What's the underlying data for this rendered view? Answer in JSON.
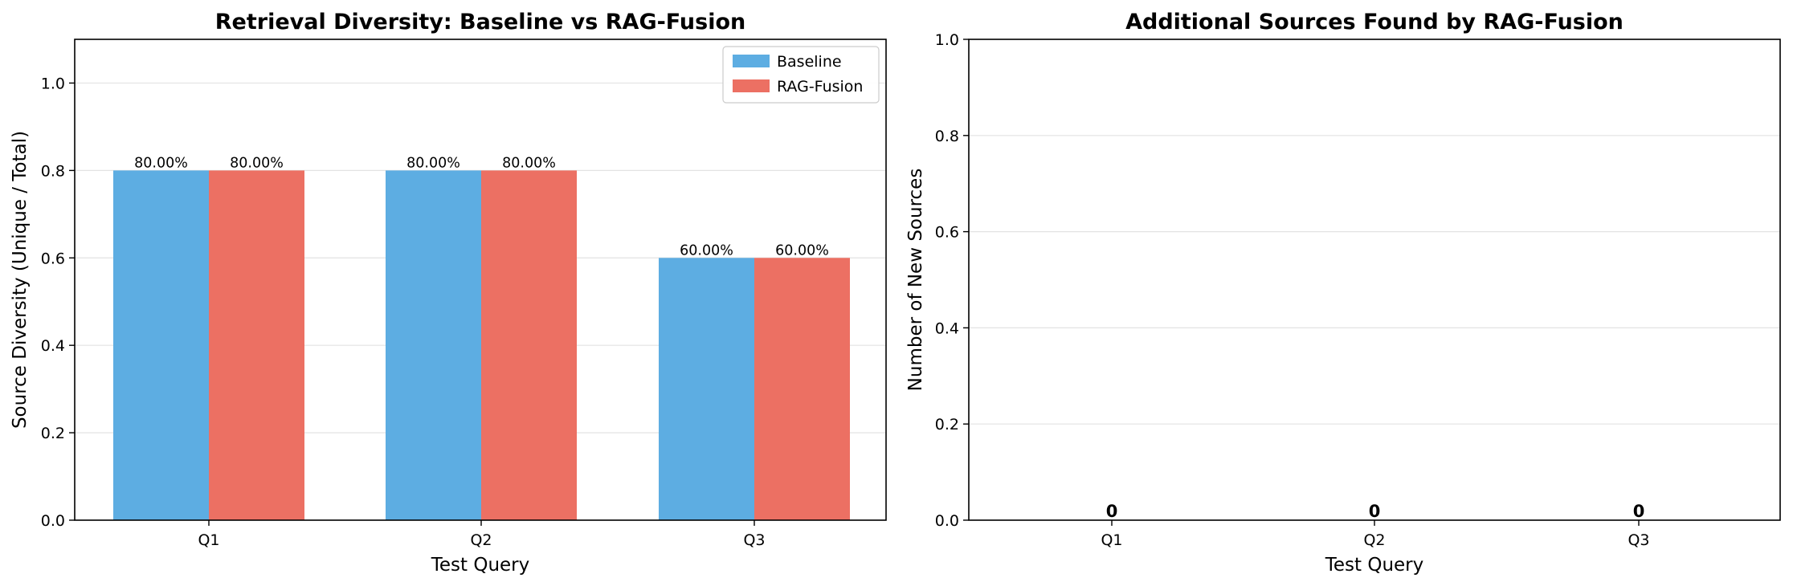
{
  "chart_data": [
    {
      "type": "bar",
      "title": "Retrieval Diversity: Baseline vs RAG-Fusion",
      "xlabel": "Test Query",
      "ylabel": "Source Diversity (Unique / Total)",
      "categories": [
        "Q1",
        "Q2",
        "Q3"
      ],
      "ylim": [
        0,
        1.1
      ],
      "yticks": [
        0.0,
        0.2,
        0.4,
        0.6,
        0.8,
        1.0
      ],
      "grid": "y",
      "legend_position": "top-right",
      "series": [
        {
          "name": "Baseline",
          "color": "#5DADE2",
          "values": [
            0.8,
            0.8,
            0.6
          ],
          "labels": [
            "80.00%",
            "80.00%",
            "60.00%"
          ]
        },
        {
          "name": "RAG-Fusion",
          "color": "#EC7063",
          "values": [
            0.8,
            0.8,
            0.6
          ],
          "labels": [
            "80.00%",
            "80.00%",
            "60.00%"
          ]
        }
      ]
    },
    {
      "type": "bar",
      "title": "Additional Sources Found by RAG-Fusion",
      "xlabel": "Test Query",
      "ylabel": "Number of New Sources",
      "categories": [
        "Q1",
        "Q2",
        "Q3"
      ],
      "ylim": [
        0,
        1.0
      ],
      "yticks": [
        0.0,
        0.2,
        0.4,
        0.6,
        0.8,
        1.0
      ],
      "grid": "y",
      "series": [
        {
          "color": "#58D68D",
          "values": [
            0,
            0,
            0
          ],
          "labels": [
            "0",
            "0",
            "0"
          ]
        }
      ]
    }
  ]
}
